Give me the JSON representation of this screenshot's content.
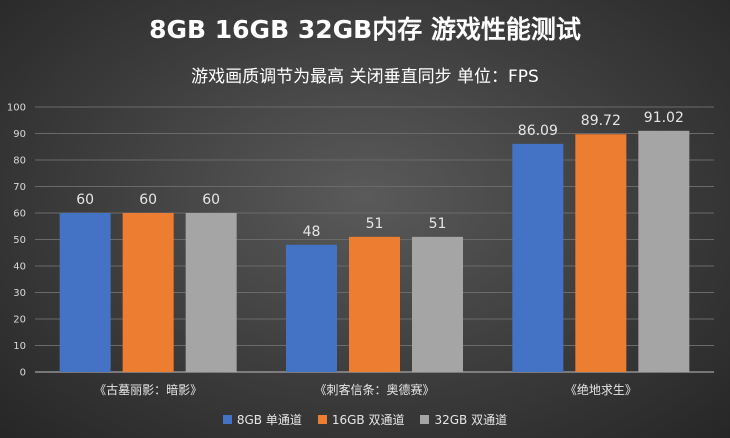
{
  "title": "8GB 16GB 32GB内存 游戏性能测试",
  "subtitle": "游戏画质调节为最高 关闭垂直同步 单位：FPS",
  "chart_data": {
    "type": "bar",
    "categories": [
      "《古墓丽影：暗影》",
      "《刺客信条：奥德赛》",
      "《绝地求生》"
    ],
    "series": [
      {
        "name": "8GB 单通道",
        "values": [
          60,
          48,
          86.09
        ],
        "labels": [
          "60",
          "48",
          "86.09"
        ],
        "color": "#4472c4"
      },
      {
        "name": "16GB 双通道",
        "values": [
          60,
          51,
          89.72
        ],
        "labels": [
          "60",
          "51",
          "89.72"
        ],
        "color": "#ed7d31"
      },
      {
        "name": "32GB 双通道",
        "values": [
          60,
          51,
          91.02
        ],
        "labels": [
          "60",
          "51",
          "91.02"
        ],
        "color": "#a5a5a5"
      }
    ],
    "ylim": [
      0,
      100
    ],
    "yticks": [
      0,
      10,
      20,
      30,
      40,
      50,
      60,
      70,
      80,
      90,
      100
    ],
    "grid": true,
    "legend_position": "bottom"
  }
}
